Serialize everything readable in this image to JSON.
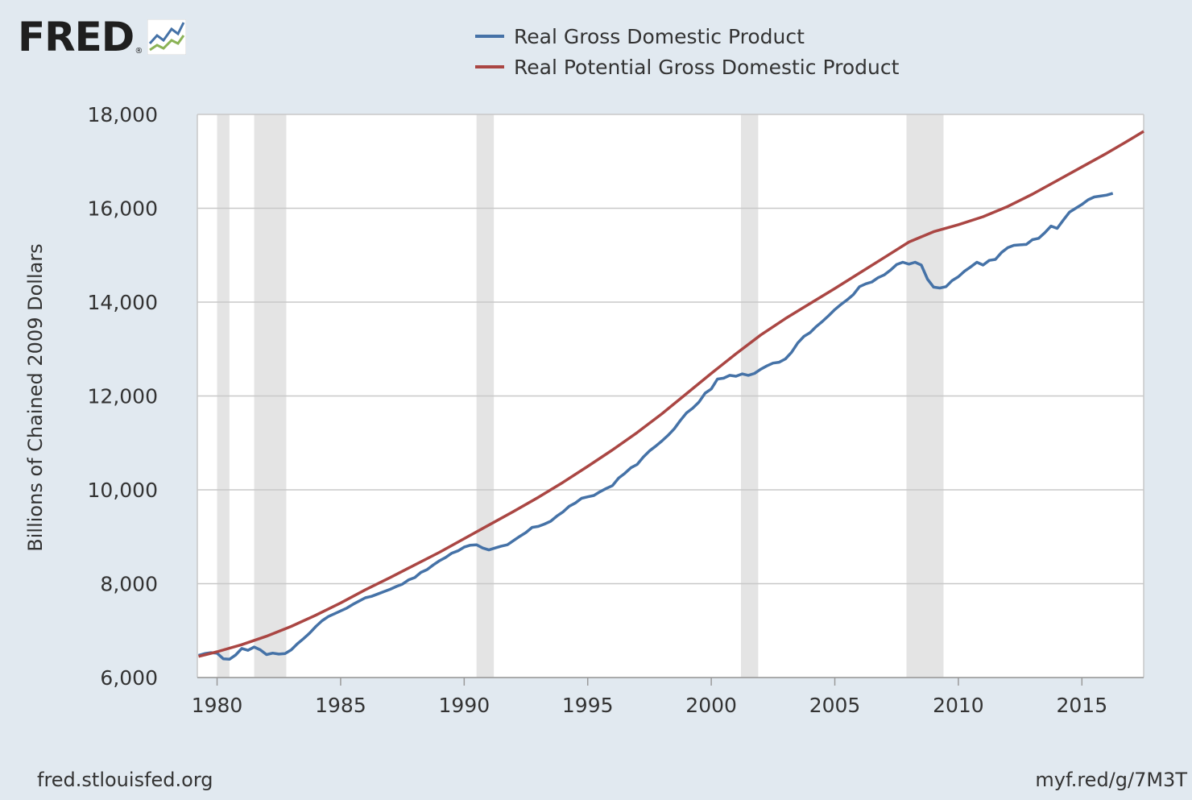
{
  "branding": {
    "logo_text": "FRED",
    "logo_mark": "®",
    "logo_icon": "fred-chart-icon",
    "source_left": "fred.stlouisfed.org",
    "source_right": "myf.red/g/7M3T"
  },
  "colors": {
    "background": "#e1e9f0",
    "plot_background": "#ffffff",
    "recession": "#e4e4e4",
    "grid": "#c8c8c8",
    "gdp": "#4572a7",
    "potential": "#aa4643"
  },
  "chart_data": {
    "type": "line",
    "title": "",
    "xlabel": "",
    "ylabel": "Billions of Chained 2009 Dollars",
    "xlim": [
      1979.2,
      2017.5
    ],
    "ylim": [
      6000,
      18000
    ],
    "grid": true,
    "legend_position": "top",
    "x_ticks": [
      1980,
      1985,
      1990,
      1995,
      2000,
      2005,
      2010,
      2015
    ],
    "x_tick_labels": [
      "1980",
      "1985",
      "1990",
      "1995",
      "2000",
      "2005",
      "2010",
      "2015"
    ],
    "y_ticks": [
      6000,
      8000,
      10000,
      12000,
      14000,
      16000,
      18000
    ],
    "y_tick_labels": [
      "6,000",
      "8,000",
      "10,000",
      "12,000",
      "14,000",
      "16,000",
      "18,000"
    ],
    "recessions": [
      [
        1980.0,
        1980.5
      ],
      [
        1981.5,
        1982.8
      ],
      [
        1990.5,
        1991.2
      ],
      [
        2001.2,
        2001.9
      ],
      [
        2007.9,
        2009.4
      ]
    ],
    "series": [
      {
        "name": "Real Gross Domestic Product",
        "color": "#4572a7",
        "points": [
          [
            1979.25,
            6470
          ],
          [
            1979.5,
            6510
          ],
          [
            1979.75,
            6530
          ],
          [
            1980.0,
            6520
          ],
          [
            1980.25,
            6400
          ],
          [
            1980.5,
            6390
          ],
          [
            1980.75,
            6480
          ],
          [
            1981.0,
            6620
          ],
          [
            1981.25,
            6580
          ],
          [
            1981.5,
            6650
          ],
          [
            1981.75,
            6590
          ],
          [
            1982.0,
            6490
          ],
          [
            1982.25,
            6520
          ],
          [
            1982.5,
            6500
          ],
          [
            1982.75,
            6510
          ],
          [
            1983.0,
            6590
          ],
          [
            1983.25,
            6720
          ],
          [
            1983.5,
            6830
          ],
          [
            1983.75,
            6950
          ],
          [
            1984.0,
            7090
          ],
          [
            1984.25,
            7210
          ],
          [
            1984.5,
            7300
          ],
          [
            1984.75,
            7360
          ],
          [
            1985.0,
            7420
          ],
          [
            1985.25,
            7480
          ],
          [
            1985.5,
            7560
          ],
          [
            1985.75,
            7630
          ],
          [
            1986.0,
            7700
          ],
          [
            1986.25,
            7730
          ],
          [
            1986.5,
            7780
          ],
          [
            1986.75,
            7830
          ],
          [
            1987.0,
            7880
          ],
          [
            1987.25,
            7940
          ],
          [
            1987.5,
            7990
          ],
          [
            1987.75,
            8080
          ],
          [
            1988.0,
            8130
          ],
          [
            1988.25,
            8240
          ],
          [
            1988.5,
            8300
          ],
          [
            1988.75,
            8400
          ],
          [
            1989.0,
            8490
          ],
          [
            1989.25,
            8560
          ],
          [
            1989.5,
            8650
          ],
          [
            1989.75,
            8700
          ],
          [
            1990.0,
            8780
          ],
          [
            1990.25,
            8820
          ],
          [
            1990.5,
            8830
          ],
          [
            1990.75,
            8760
          ],
          [
            1991.0,
            8720
          ],
          [
            1991.25,
            8760
          ],
          [
            1991.5,
            8800
          ],
          [
            1991.75,
            8830
          ],
          [
            1992.0,
            8920
          ],
          [
            1992.25,
            9010
          ],
          [
            1992.5,
            9090
          ],
          [
            1992.75,
            9200
          ],
          [
            1993.0,
            9220
          ],
          [
            1993.25,
            9270
          ],
          [
            1993.5,
            9330
          ],
          [
            1993.75,
            9440
          ],
          [
            1994.0,
            9530
          ],
          [
            1994.25,
            9650
          ],
          [
            1994.5,
            9720
          ],
          [
            1994.75,
            9820
          ],
          [
            1995.0,
            9850
          ],
          [
            1995.25,
            9880
          ],
          [
            1995.5,
            9960
          ],
          [
            1995.75,
            10030
          ],
          [
            1996.0,
            10090
          ],
          [
            1996.25,
            10250
          ],
          [
            1996.5,
            10350
          ],
          [
            1996.75,
            10470
          ],
          [
            1997.0,
            10540
          ],
          [
            1997.25,
            10700
          ],
          [
            1997.5,
            10830
          ],
          [
            1997.75,
            10930
          ],
          [
            1998.0,
            11040
          ],
          [
            1998.25,
            11160
          ],
          [
            1998.5,
            11300
          ],
          [
            1998.75,
            11480
          ],
          [
            1999.0,
            11640
          ],
          [
            1999.25,
            11740
          ],
          [
            1999.5,
            11870
          ],
          [
            1999.75,
            12060
          ],
          [
            2000.0,
            12150
          ],
          [
            2000.25,
            12360
          ],
          [
            2000.5,
            12380
          ],
          [
            2000.75,
            12440
          ],
          [
            2001.0,
            12420
          ],
          [
            2001.25,
            12470
          ],
          [
            2001.5,
            12440
          ],
          [
            2001.75,
            12480
          ],
          [
            2002.0,
            12570
          ],
          [
            2002.25,
            12640
          ],
          [
            2002.5,
            12700
          ],
          [
            2002.75,
            12720
          ],
          [
            2003.0,
            12790
          ],
          [
            2003.25,
            12930
          ],
          [
            2003.5,
            13130
          ],
          [
            2003.75,
            13270
          ],
          [
            2004.0,
            13350
          ],
          [
            2004.25,
            13480
          ],
          [
            2004.5,
            13590
          ],
          [
            2004.75,
            13710
          ],
          [
            2005.0,
            13840
          ],
          [
            2005.25,
            13950
          ],
          [
            2005.5,
            14050
          ],
          [
            2005.75,
            14160
          ],
          [
            2006.0,
            14330
          ],
          [
            2006.25,
            14390
          ],
          [
            2006.5,
            14430
          ],
          [
            2006.75,
            14520
          ],
          [
            2007.0,
            14580
          ],
          [
            2007.25,
            14680
          ],
          [
            2007.5,
            14800
          ],
          [
            2007.75,
            14850
          ],
          [
            2008.0,
            14810
          ],
          [
            2008.25,
            14850
          ],
          [
            2008.5,
            14790
          ],
          [
            2008.75,
            14490
          ],
          [
            2009.0,
            14320
          ],
          [
            2009.25,
            14300
          ],
          [
            2009.5,
            14330
          ],
          [
            2009.75,
            14460
          ],
          [
            2010.0,
            14540
          ],
          [
            2010.25,
            14660
          ],
          [
            2010.5,
            14750
          ],
          [
            2010.75,
            14850
          ],
          [
            2011.0,
            14790
          ],
          [
            2011.25,
            14890
          ],
          [
            2011.5,
            14910
          ],
          [
            2011.75,
            15060
          ],
          [
            2012.0,
            15160
          ],
          [
            2012.25,
            15210
          ],
          [
            2012.5,
            15220
          ],
          [
            2012.75,
            15230
          ],
          [
            2013.0,
            15330
          ],
          [
            2013.25,
            15360
          ],
          [
            2013.5,
            15480
          ],
          [
            2013.75,
            15620
          ],
          [
            2014.0,
            15570
          ],
          [
            2014.25,
            15750
          ],
          [
            2014.5,
            15920
          ],
          [
            2014.75,
            16000
          ],
          [
            2015.0,
            16080
          ],
          [
            2015.25,
            16180
          ],
          [
            2015.5,
            16240
          ],
          [
            2015.75,
            16260
          ],
          [
            2016.0,
            16280
          ],
          [
            2016.25,
            16320
          ]
        ]
      },
      {
        "name": "Real Potential Gross Domestic Product",
        "color": "#aa4643",
        "points": [
          [
            1979.25,
            6450
          ],
          [
            1980,
            6550
          ],
          [
            1981,
            6700
          ],
          [
            1982,
            6880
          ],
          [
            1983,
            7090
          ],
          [
            1984,
            7330
          ],
          [
            1985,
            7590
          ],
          [
            1986,
            7870
          ],
          [
            1987,
            8130
          ],
          [
            1988,
            8400
          ],
          [
            1989,
            8670
          ],
          [
            1990,
            8960
          ],
          [
            1991,
            9250
          ],
          [
            1992,
            9540
          ],
          [
            1993,
            9840
          ],
          [
            1994,
            10160
          ],
          [
            1995,
            10500
          ],
          [
            1996,
            10850
          ],
          [
            1997,
            11220
          ],
          [
            1998,
            11620
          ],
          [
            1999,
            12050
          ],
          [
            2000,
            12480
          ],
          [
            2001,
            12900
          ],
          [
            2002,
            13300
          ],
          [
            2003,
            13650
          ],
          [
            2004,
            13970
          ],
          [
            2005,
            14290
          ],
          [
            2006,
            14620
          ],
          [
            2007,
            14950
          ],
          [
            2008,
            15280
          ],
          [
            2009,
            15500
          ],
          [
            2010,
            15650
          ],
          [
            2011,
            15820
          ],
          [
            2012,
            16040
          ],
          [
            2013,
            16300
          ],
          [
            2014,
            16590
          ],
          [
            2015,
            16880
          ],
          [
            2016,
            17170
          ],
          [
            2017,
            17480
          ],
          [
            2017.5,
            17640
          ]
        ]
      }
    ]
  }
}
